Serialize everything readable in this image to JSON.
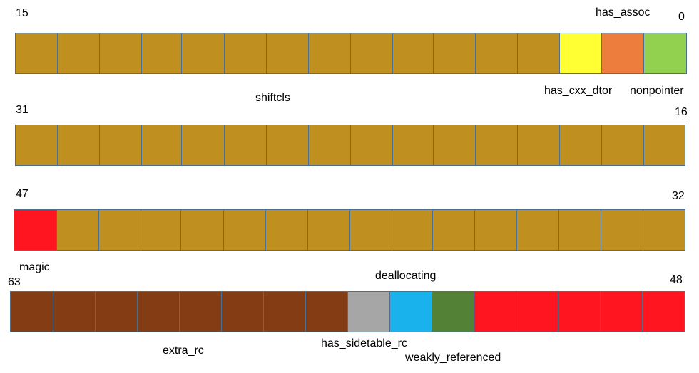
{
  "colors": {
    "gold": "#bf9020",
    "yellow": "#ffff33",
    "orange": "#ed7d3c",
    "green_light": "#92d050",
    "red": "#ff1520",
    "brown": "#843c14",
    "gray": "#a6a6a6",
    "blue": "#1ab2ec",
    "green_dark": "#538135"
  },
  "rows": [
    {
      "bit_high": "15",
      "bit_low": "0",
      "cells": [
        "gold",
        "gold",
        "gold",
        "gold",
        "gold",
        "gold",
        "gold",
        "gold",
        "gold",
        "gold",
        "gold",
        "gold",
        "gold",
        "yellow",
        "orange",
        "green_light"
      ]
    },
    {
      "bit_high": "31",
      "bit_low": "16",
      "cells": [
        "gold",
        "gold",
        "gold",
        "gold",
        "gold",
        "gold",
        "gold",
        "gold",
        "gold",
        "gold",
        "gold",
        "gold",
        "gold",
        "gold",
        "gold",
        "gold"
      ]
    },
    {
      "bit_high": "47",
      "bit_low": "32",
      "cells": [
        "red",
        "gold",
        "gold",
        "gold",
        "gold",
        "gold",
        "gold",
        "gold",
        "gold",
        "gold",
        "gold",
        "gold",
        "gold",
        "gold",
        "gold",
        "gold"
      ]
    },
    {
      "bit_high": "63",
      "bit_low": "48",
      "cells": [
        "brown",
        "brown",
        "brown",
        "brown",
        "brown",
        "brown",
        "brown",
        "brown",
        "gray",
        "blue",
        "green_dark",
        "red",
        "red",
        "red",
        "red",
        "red"
      ]
    }
  ],
  "fields": {
    "has_assoc": "has_assoc",
    "has_cxx_dtor": "has_cxx_dtor",
    "nonpointer": "nonpointer",
    "shiftcls": "shiftcls",
    "magic": "magic",
    "deallocating": "deallocating",
    "extra_rc": "extra_rc",
    "has_sidetable_rc": "has_sidetable_rc",
    "weakly_referenced": "weakly_referenced"
  }
}
